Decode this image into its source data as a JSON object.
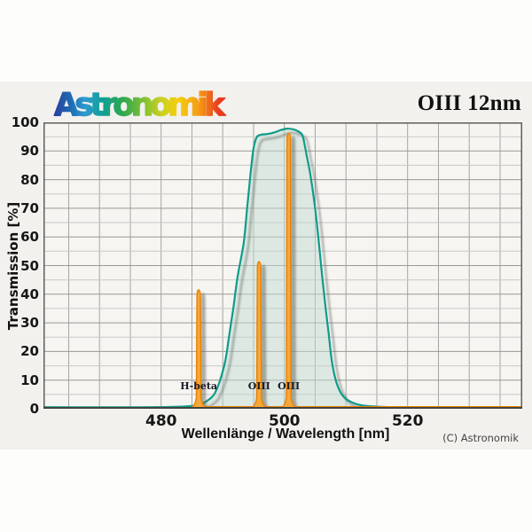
{
  "header": {
    "logo_text": "Astronomik",
    "title": "OIII 12nm"
  },
  "chart_data": {
    "type": "area",
    "title": "OIII 12nm",
    "xlabel": "Wellenlänge / Wavelength [nm]",
    "ylabel": "Transmission [%]",
    "footer": "(C) Astronomik",
    "xlim": [
      460.9,
      538.6
    ],
    "ylim": [
      0,
      100
    ],
    "xticks": [
      480,
      500,
      520
    ],
    "yticks": [
      0,
      10,
      20,
      30,
      40,
      50,
      60,
      70,
      80,
      90,
      100
    ],
    "grid": {
      "x_step": 5,
      "y_minor_step": 5,
      "y_major_step": 10
    },
    "colors": {
      "panel_bg": "#f2f1ee",
      "page_bg": "#fdfdfc",
      "plot_bg": "#f6f5f2",
      "grid_vertical": "#a5a5a2",
      "grid_minor": "#c8c8c6",
      "grid_major": "#999996",
      "border": "#5f5f5c",
      "axis_bottom": "#42423e",
      "bandpass_stroke": "#0e9c8a",
      "bandpass_fill": "rgba(193,218,206,0.48)",
      "emission_stroke": "#e98206",
      "emission_fill": "#f7a838",
      "logo_gradient": [
        "#2a3f9d",
        "#1e6cb4",
        "#2f9ad0",
        "#0fa096",
        "#2fa84c",
        "#7fbf33",
        "#c9d021",
        "#f4ce0e",
        "#f59d15",
        "#e93a1f"
      ]
    },
    "series": [
      {
        "name": "filter-bandpass",
        "points": [
          [
            460.9,
            0.55
          ],
          [
            468,
            0.5
          ],
          [
            476,
            0.5
          ],
          [
            481,
            0.6
          ],
          [
            484,
            0.8
          ],
          [
            485.8,
            1.2
          ],
          [
            486.9,
            2.0
          ],
          [
            487.4,
            2.7
          ],
          [
            488.1,
            3.8
          ],
          [
            488.7,
            5.4
          ],
          [
            489.5,
            9.5
          ],
          [
            490.4,
            16.6
          ],
          [
            491.0,
            25
          ],
          [
            491.7,
            35
          ],
          [
            492.4,
            46
          ],
          [
            493.4,
            58
          ],
          [
            494.0,
            71
          ],
          [
            494.6,
            84
          ],
          [
            495.0,
            91
          ],
          [
            495.5,
            94.8
          ],
          [
            496.2,
            95.7
          ],
          [
            497.2,
            95.9
          ],
          [
            498.4,
            96.5
          ],
          [
            499.4,
            97.3
          ],
          [
            500.4,
            97.8
          ],
          [
            501.4,
            97.6
          ],
          [
            502.2,
            96.9
          ],
          [
            502.9,
            95.6
          ],
          [
            503.3,
            92
          ],
          [
            503.7,
            87.5
          ],
          [
            504.2,
            82
          ],
          [
            504.9,
            71.5
          ],
          [
            505.5,
            60
          ],
          [
            506.1,
            47
          ],
          [
            506.7,
            35
          ],
          [
            507.2,
            26
          ],
          [
            507.7,
            16.6
          ],
          [
            508.4,
            9.5
          ],
          [
            509.2,
            5.4
          ],
          [
            510.0,
            3.4
          ],
          [
            510.9,
            2.3
          ],
          [
            512.5,
            1.2
          ],
          [
            514.5,
            0.8
          ],
          [
            517,
            0.55
          ],
          [
            521,
            0.35
          ],
          [
            528,
            0.25
          ],
          [
            538.6,
            0.2
          ]
        ]
      },
      {
        "name": "emission-lines",
        "baseline_percent": 0,
        "lines": [
          {
            "label": "H-beta",
            "wavelength_nm": 486.1,
            "peak_percent": 41.5
          },
          {
            "label": "OIII",
            "wavelength_nm": 495.9,
            "peak_percent": 51.3
          },
          {
            "label": "OIII",
            "wavelength_nm": 500.7,
            "peak_percent": 96.2
          }
        ]
      }
    ]
  }
}
